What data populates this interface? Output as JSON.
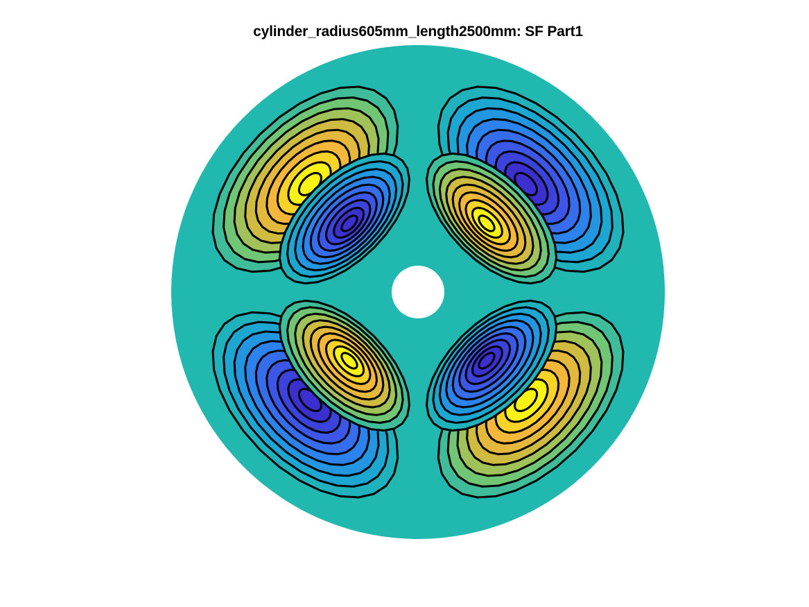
{
  "chart_data": {
    "type": "heatmap",
    "subtype": "filled-contour",
    "title": "cylinder_radius605mm_length2500mm: SF Part1",
    "geometry": {
      "domain": "annulus",
      "outer_radius_mm": 605,
      "inner_hole_radius_mm": 65
    },
    "field": {
      "angular_order": 2,
      "radial_nodes": 1,
      "sign_pattern": [
        "positive outer lobe top-left",
        "negative outer lobe top-right",
        "negative outer lobe bottom-left",
        "positive outer lobe bottom-right"
      ],
      "contour_levels": 9,
      "nodal_lines": "horizontal and vertical through center"
    },
    "axes_visible": false,
    "grid": false,
    "legend": "none",
    "colormap": "parula",
    "colors": {
      "background_field": "#21b8b0",
      "negative_extreme": "#3b2fd0",
      "positive_extreme": "#f8f314",
      "contour_line": "#000000"
    }
  }
}
